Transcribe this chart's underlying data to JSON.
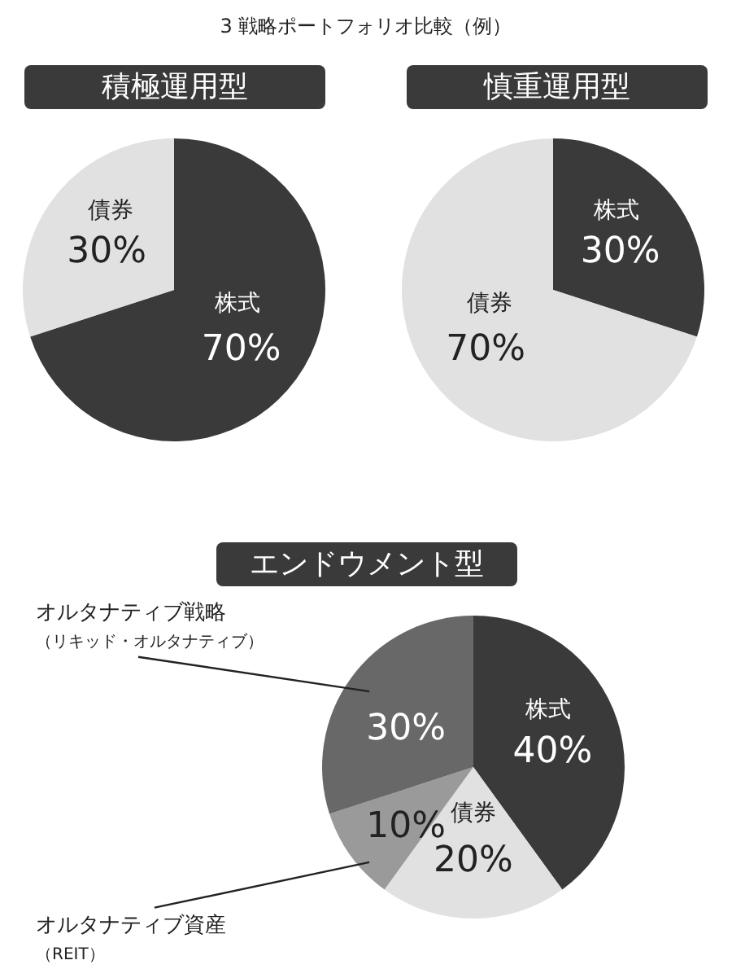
{
  "chart_data": [
    {
      "type": "pie",
      "title": "積極運用型",
      "annotations": [
        "3 戦略ポートフォリオ比較（例）"
      ],
      "categories": [
        "株式",
        "債券"
      ],
      "values": [
        70,
        30
      ],
      "value_labels": [
        "70%",
        "30%"
      ],
      "colors": [
        "#3a3a3a",
        "#e1e1e1"
      ]
    },
    {
      "type": "pie",
      "title": "慎重運用型",
      "categories": [
        "株式",
        "債券"
      ],
      "values": [
        30,
        70
      ],
      "value_labels": [
        "30%",
        "70%"
      ],
      "colors": [
        "#3a3a3a",
        "#e1e1e1"
      ]
    },
    {
      "type": "pie",
      "title": "エンドウメント型",
      "categories": [
        "株式",
        "債券",
        "オルタナティブ資産（REIT）",
        "オルタナティブ戦略（リキッド・オルタナティブ）"
      ],
      "values": [
        40,
        20,
        10,
        30
      ],
      "value_labels": [
        "40%",
        "20%",
        "10%",
        "30%"
      ],
      "colors": [
        "#3a3a3a",
        "#e1e1e1",
        "#9a9a9a",
        "#686868"
      ]
    }
  ]
}
